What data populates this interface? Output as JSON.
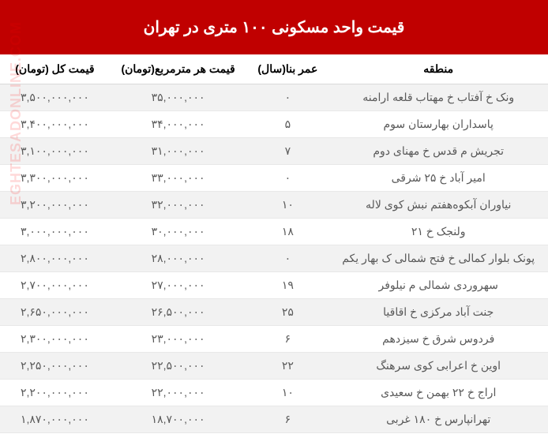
{
  "title": "قیمت واحد مسکونی ۱۰۰ متری در تهران",
  "columns": {
    "region": "منطقه",
    "age": "عمر بنا(سال)",
    "price_per_m": "قیمت هر مترمربع(تومان)",
    "total_price": "قیمت کل (تومان)"
  },
  "rows": [
    {
      "region": "ونک خ آفتاب خ مهتاب قلعه ارامنه",
      "age": "۰",
      "ppm": "۳۵,۰۰۰,۰۰۰",
      "total": "۳,۵۰۰,۰۰۰,۰۰۰"
    },
    {
      "region": "پاسداران بهارستان سوم",
      "age": "۵",
      "ppm": "۳۴,۰۰۰,۰۰۰",
      "total": "۳,۴۰۰,۰۰۰,۰۰۰"
    },
    {
      "region": "تجریش م قدس خ مهنای دوم",
      "age": "۷",
      "ppm": "۳۱,۰۰۰,۰۰۰",
      "total": "۳,۱۰۰,۰۰۰,۰۰۰"
    },
    {
      "region": "امیر آباد خ ۲۵ شرقی",
      "age": "۰",
      "ppm": "۳۳,۰۰۰,۰۰۰",
      "total": "۳,۳۰۰,۰۰۰,۰۰۰"
    },
    {
      "region": "نیاوران آبکوه‌هفتم نبش کوی لاله",
      "age": "۱۰",
      "ppm": "۳۲,۰۰۰,۰۰۰",
      "total": "۳,۲۰۰,۰۰۰,۰۰۰"
    },
    {
      "region": "ولنجک خ ۲۱",
      "age": "۱۸",
      "ppm": "۳۰,۰۰۰,۰۰۰",
      "total": "۳,۰۰۰,۰۰۰,۰۰۰"
    },
    {
      "region": "پونک بلوار کمالی خ فتح شمالی ک بهار یکم",
      "age": "۰",
      "ppm": "۲۸,۰۰۰,۰۰۰",
      "total": "۲,۸۰۰,۰۰۰,۰۰۰"
    },
    {
      "region": "سهروردی شمالی  م نیلوفر",
      "age": "۱۹",
      "ppm": "۲۷,۰۰۰,۰۰۰",
      "total": "۲,۷۰۰,۰۰۰,۰۰۰"
    },
    {
      "region": "جنت آباد مرکزی خ اقاقیا",
      "age": "۲۵",
      "ppm": "۲۶,۵۰۰,۰۰۰",
      "total": "۲,۶۵۰,۰۰۰,۰۰۰"
    },
    {
      "region": "فردوس شرق خ سیزدهم",
      "age": "۶",
      "ppm": "۲۳,۰۰۰,۰۰۰",
      "total": "۲,۳۰۰,۰۰۰,۰۰۰"
    },
    {
      "region": "اوین خ اعرابی کوی سرهنگ",
      "age": "۲۲",
      "ppm": "۲۲,۵۰۰,۰۰۰",
      "total": "۲,۲۵۰,۰۰۰,۰۰۰"
    },
    {
      "region": "اراج خ ۲۲ بهمن خ سعیدی",
      "age": "۱۰",
      "ppm": "۲۲,۰۰۰,۰۰۰",
      "total": "۲,۲۰۰,۰۰۰,۰۰۰"
    },
    {
      "region": "تهرانپارس خ ۱۸۰ غربی",
      "age": "۶",
      "ppm": "۱۸,۷۰۰,۰۰۰",
      "total": "۱,۸۷۰,۰۰۰,۰۰۰"
    }
  ],
  "styling": {
    "title_bg": "#c00000",
    "title_color": "#ffffff",
    "title_fontsize": 20,
    "header_bg": "#ffffff",
    "header_color": "#000000",
    "row_odd_bg": "#f2f2f2",
    "row_even_bg": "#ffffff",
    "cell_color": "#595959",
    "border_color": "#d9d9d9",
    "cell_fontsize": 14,
    "col_widths": {
      "region": "40%",
      "age": "15%",
      "ppm": "25%",
      "total": "20%"
    }
  },
  "watermark": "EGHTESADONLINE.COM"
}
